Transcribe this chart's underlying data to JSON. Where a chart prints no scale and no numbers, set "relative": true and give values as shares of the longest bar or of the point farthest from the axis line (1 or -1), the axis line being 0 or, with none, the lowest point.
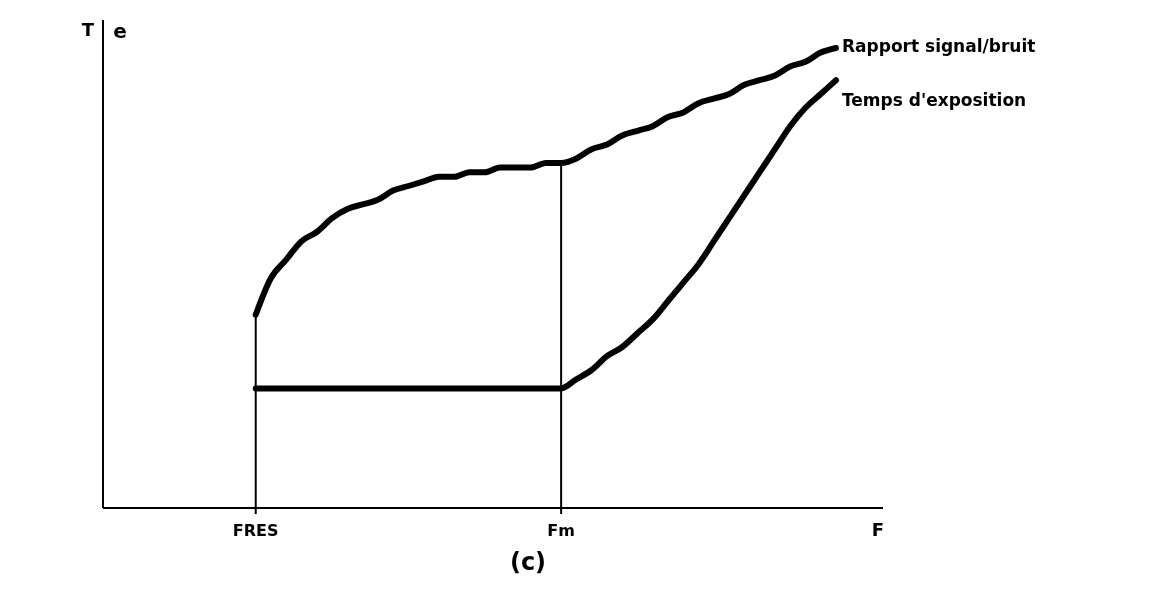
{
  "chart_data": {
    "type": "line",
    "relative": true,
    "xlabel": "F",
    "ylabel": "T",
    "annotations": [
      "e",
      "(c)"
    ],
    "categories": [
      null,
      null,
      null,
      null,
      null,
      null,
      null,
      null,
      null,
      null,
      "FRES",
      null,
      null,
      null,
      null,
      null,
      null,
      null,
      null,
      null,
      null,
      null,
      null,
      null,
      null,
      null,
      null,
      null,
      null,
      null,
      "Fm",
      null,
      null,
      null,
      null,
      null,
      null,
      null,
      null,
      null,
      null,
      null,
      null,
      null,
      null,
      null,
      null,
      null,
      null
    ],
    "series": [
      {
        "name": "Rapport signal/bruit",
        "color": "#000000",
        "values": [
          null,
          null,
          null,
          null,
          null,
          null,
          null,
          null,
          null,
          null,
          0.42,
          0.5,
          0.54,
          0.58,
          0.6,
          0.63,
          0.65,
          0.66,
          0.67,
          0.69,
          0.7,
          0.71,
          0.72,
          0.72,
          0.73,
          0.73,
          0.74,
          0.74,
          0.74,
          0.75,
          0.75,
          0.76,
          0.78,
          0.79,
          0.81,
          0.82,
          0.83,
          0.85,
          0.86,
          0.88,
          0.89,
          0.9,
          0.92,
          0.93,
          0.94,
          0.96,
          0.97,
          0.99,
          1
        ]
      },
      {
        "name": "Temps d'exposition",
        "color": "#000000",
        "values": [
          null,
          null,
          null,
          null,
          null,
          null,
          null,
          null,
          null,
          null,
          0.26,
          0.26,
          0.26,
          0.26,
          0.26,
          0.26,
          0.26,
          0.26,
          0.26,
          0.26,
          0.26,
          0.26,
          0.26,
          0.26,
          0.26,
          0.26,
          0.26,
          0.26,
          0.26,
          0.26,
          0.26,
          0.28,
          0.3,
          0.33,
          0.35,
          0.38,
          0.41,
          0.45,
          0.49,
          0.53,
          0.58,
          0.63,
          0.68,
          0.73,
          0.78,
          0.83,
          0.87,
          0.9,
          0.93
        ]
      }
    ],
    "ref_lines": [
      {
        "axis": "x",
        "value": "FRES"
      },
      {
        "axis": "x",
        "value": "Fm"
      }
    ]
  }
}
